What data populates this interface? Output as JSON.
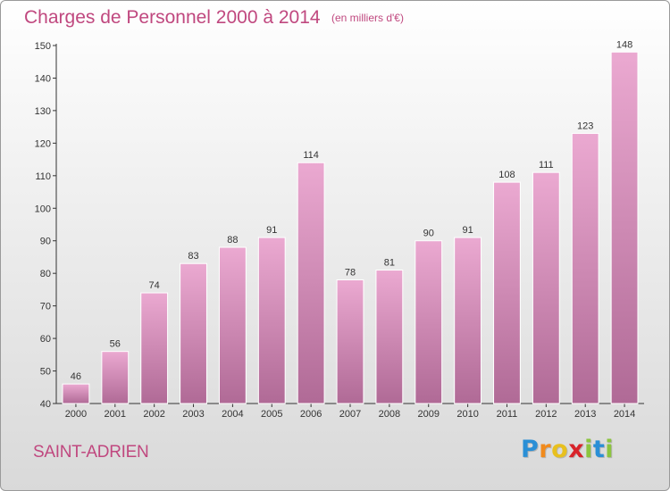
{
  "title": "Charges de Personnel 2000 à 2014",
  "subtitle": "(en milliers d'€)",
  "town": "SAINT-ADRIEN",
  "logo": {
    "letters": [
      "P",
      "r",
      "o",
      "x",
      "i",
      "t",
      "i"
    ],
    "colors": [
      "#2a8fd6",
      "#f18a1c",
      "#e8c01e",
      "#d8232a",
      "#8cc43f",
      "#2a8fd6",
      "#8cc43f"
    ]
  },
  "colors": {
    "title": "#c0487f",
    "bar_top": "#eba9d1",
    "bar_bottom": "#b06a96",
    "bar_stroke": "#ffffff"
  },
  "chart_data": {
    "type": "bar",
    "categories": [
      "2000",
      "2001",
      "2002",
      "2003",
      "2004",
      "2005",
      "2006",
      "2007",
      "2008",
      "2009",
      "2010",
      "2011",
      "2012",
      "2013",
      "2014"
    ],
    "values": [
      46,
      56,
      74,
      83,
      88,
      91,
      114,
      78,
      81,
      90,
      91,
      108,
      111,
      123,
      148
    ],
    "ylim": [
      40,
      150
    ],
    "yticks": [
      40,
      50,
      60,
      70,
      80,
      90,
      100,
      110,
      120,
      130,
      140,
      150
    ],
    "grid": false,
    "legend": "none"
  }
}
